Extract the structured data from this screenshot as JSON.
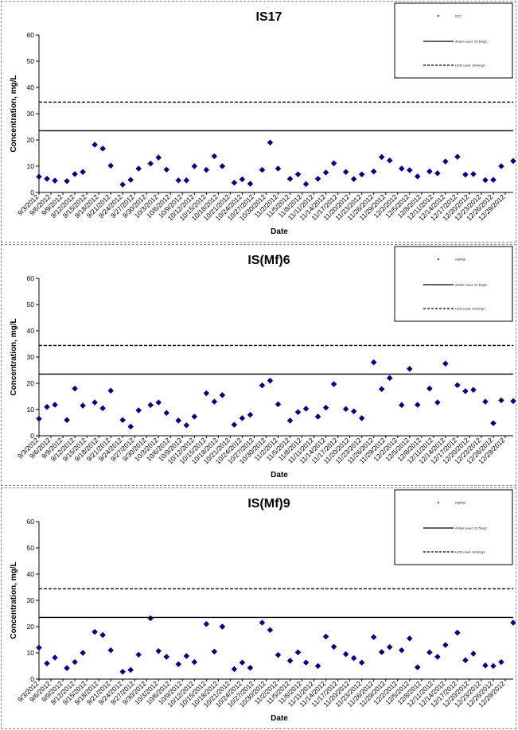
{
  "chart_data": [
    {
      "type": "scatter",
      "title": "IS17",
      "xlabel": "Date",
      "ylabel": "Concentration, mg/L",
      "ylim": [
        0,
        60
      ],
      "yticks": [
        0,
        10,
        20,
        30,
        40,
        50,
        60
      ],
      "grid": false,
      "legend_position": "top-right",
      "x_tick_labels": [
        "9/3/2012",
        "9/6/2012",
        "9/9/2012",
        "9/12/2012",
        "9/15/2012",
        "9/18/2012",
        "9/21/2012",
        "9/24/2012",
        "9/27/2012",
        "9/30/2012",
        "10/3/2012",
        "10/6/2012",
        "10/9/2012",
        "10/12/2012",
        "10/15/2012",
        "10/18/2012",
        "10/21/2012",
        "10/24/2012",
        "10/27/2012",
        "10/30/2012",
        "11/2/2012",
        "11/5/2012",
        "11/8/2012",
        "11/11/2012",
        "11/14/2012",
        "11/17/2012",
        "11/20/2012",
        "11/23/2012",
        "11/26/2012",
        "11/29/2012",
        "12/2/2012",
        "12/5/2012",
        "12/8/2012",
        "12/11/2012",
        "12/14/2012",
        "12/17/2012",
        "12/20/2012",
        "12/23/2012",
        "12/26/2012",
        "12/29/2012"
      ],
      "x_range": [
        "9/3/2012",
        "12/31/2012"
      ],
      "series": [
        {
          "name": "IS17",
          "marker": "diamond",
          "color": "#00007f",
          "points": [
            [
              "9/3/2012",
              6.0
            ],
            [
              "9/5/2012",
              5.2
            ],
            [
              "9/7/2012",
              4.5
            ],
            [
              "9/10/2012",
              4.3
            ],
            [
              "9/12/2012",
              7.0
            ],
            [
              "9/14/2012",
              7.8
            ],
            [
              "9/17/2012",
              18.2
            ],
            [
              "9/19/2012",
              16.7
            ],
            [
              "9/21/2012",
              10.2
            ],
            [
              "9/24/2012",
              3.0
            ],
            [
              "9/26/2012",
              4.8
            ],
            [
              "9/28/2012",
              9.1
            ],
            [
              "10/1/2012",
              11.0
            ],
            [
              "10/3/2012",
              13.3
            ],
            [
              "10/5/2012",
              8.7
            ],
            [
              "10/8/2012",
              4.6
            ],
            [
              "10/10/2012",
              4.6
            ],
            [
              "10/12/2012",
              10.0
            ],
            [
              "10/15/2012",
              8.6
            ],
            [
              "10/17/2012",
              13.8
            ],
            [
              "10/19/2012",
              10.0
            ],
            [
              "10/22/2012",
              3.7
            ],
            [
              "10/24/2012",
              5.0
            ],
            [
              "10/26/2012",
              3.3
            ],
            [
              "10/29/2012",
              8.6
            ],
            [
              "10/31/2012",
              19.0
            ],
            [
              "11/2/2012",
              9.1
            ],
            [
              "11/5/2012",
              5.2
            ],
            [
              "11/7/2012",
              6.9
            ],
            [
              "11/9/2012",
              3.2
            ],
            [
              "11/12/2012",
              5.2
            ],
            [
              "11/14/2012",
              7.6
            ],
            [
              "11/16/2012",
              11.1
            ],
            [
              "11/19/2012",
              7.8
            ],
            [
              "11/21/2012",
              5.1
            ],
            [
              "11/23/2012",
              6.9
            ],
            [
              "11/26/2012",
              8.0
            ],
            [
              "11/28/2012",
              13.5
            ],
            [
              "11/30/2012",
              12.2
            ],
            [
              "12/3/2012",
              9.1
            ],
            [
              "12/5/2012",
              8.5
            ],
            [
              "12/7/2012",
              6.1
            ],
            [
              "12/10/2012",
              8.0
            ],
            [
              "12/12/2012",
              7.3
            ],
            [
              "12/14/2012",
              11.8
            ],
            [
              "12/17/2012",
              13.6
            ],
            [
              "12/19/2012",
              6.8
            ],
            [
              "12/21/2012",
              7.0
            ],
            [
              "12/24/2012",
              4.7
            ],
            [
              "12/26/2012",
              4.8
            ],
            [
              "12/28/2012",
              10.0
            ],
            [
              "12/31/2012",
              12.0
            ]
          ]
        },
        {
          "name": "Action Level: 23.5mg/L",
          "type": "hline",
          "y": 23.5,
          "style": "solid"
        },
        {
          "name": "Limit Level: 34.4mg/L",
          "type": "hline",
          "y": 34.4,
          "style": "dashed"
        }
      ]
    },
    {
      "type": "scatter",
      "title": "IS(Mf)6",
      "xlabel": "Date",
      "ylabel": "Concentration, mg/L",
      "ylim": [
        0,
        60
      ],
      "yticks": [
        0,
        10,
        20,
        30,
        40,
        50,
        60
      ],
      "grid": false,
      "legend_position": "top-right",
      "x_tick_labels": [
        "9/3/2012",
        "9/6/2012",
        "9/9/2012",
        "9/12/2012",
        "9/15/2012",
        "9/18/2012",
        "9/21/2012",
        "9/24/2012",
        "9/27/2012",
        "9/30/2012",
        "10/3/2012",
        "10/6/2012",
        "10/9/2012",
        "10/12/2012",
        "10/15/2012",
        "10/18/2012",
        "10/21/2012",
        "10/24/2012",
        "10/27/2012",
        "10/30/2012",
        "11/2/2012",
        "11/5/2012",
        "11/8/2012",
        "11/11/2012",
        "11/14/2012",
        "11/17/2012",
        "11/20/2012",
        "11/23/2012",
        "11/26/2012",
        "11/29/2012",
        "12/2/2012",
        "12/5/2012",
        "12/8/2012",
        "12/11/2012",
        "12/14/2012",
        "12/17/2012",
        "12/20/2012",
        "12/23/2012",
        "12/26/2012",
        "12/29/2012"
      ],
      "x_range": [
        "9/3/2012",
        "12/31/2012"
      ],
      "series": [
        {
          "name": "IS(Mf)6",
          "marker": "diamond",
          "color": "#00007f",
          "points": [
            [
              "9/3/2012",
              6.5
            ],
            [
              "9/5/2012",
              11.0
            ],
            [
              "9/7/2012",
              11.8
            ],
            [
              "9/10/2012",
              6.0
            ],
            [
              "9/12/2012",
              18.0
            ],
            [
              "9/14/2012",
              11.5
            ],
            [
              "9/17/2012",
              12.7
            ],
            [
              "9/19/2012",
              10.5
            ],
            [
              "9/21/2012",
              17.2
            ],
            [
              "9/24/2012",
              6.0
            ],
            [
              "9/26/2012",
              3.5
            ],
            [
              "9/28/2012",
              9.7
            ],
            [
              "10/1/2012",
              11.7
            ],
            [
              "10/3/2012",
              12.7
            ],
            [
              "10/5/2012",
              8.7
            ],
            [
              "10/8/2012",
              5.8
            ],
            [
              "10/10/2012",
              4.0
            ],
            [
              "10/12/2012",
              7.3
            ],
            [
              "10/15/2012",
              16.2
            ],
            [
              "10/17/2012",
              13.0
            ],
            [
              "10/19/2012",
              15.5
            ],
            [
              "10/22/2012",
              4.2
            ],
            [
              "10/24/2012",
              6.7
            ],
            [
              "10/26/2012",
              8.0
            ],
            [
              "10/29/2012",
              19.2
            ],
            [
              "10/31/2012",
              21.0
            ],
            [
              "11/2/2012",
              12.0
            ],
            [
              "11/5/2012",
              5.8
            ],
            [
              "11/7/2012",
              9.0
            ],
            [
              "11/9/2012",
              10.3
            ],
            [
              "11/12/2012",
              7.3
            ],
            [
              "11/14/2012",
              10.7
            ],
            [
              "11/16/2012",
              19.7
            ],
            [
              "11/19/2012",
              10.2
            ],
            [
              "11/21/2012",
              9.3
            ],
            [
              "11/23/2012",
              6.7
            ],
            [
              "11/26/2012",
              28.0
            ],
            [
              "11/28/2012",
              17.8
            ],
            [
              "11/30/2012",
              22.0
            ],
            [
              "12/3/2012",
              11.7
            ],
            [
              "12/5/2012",
              25.5
            ],
            [
              "12/7/2012",
              11.8
            ],
            [
              "12/10/2012",
              18.0
            ],
            [
              "12/12/2012",
              12.7
            ],
            [
              "12/14/2012",
              27.5
            ],
            [
              "12/17/2012",
              19.3
            ],
            [
              "12/19/2012",
              17.0
            ],
            [
              "12/21/2012",
              17.5
            ],
            [
              "12/24/2012",
              13.0
            ],
            [
              "12/26/2012",
              4.8
            ],
            [
              "12/28/2012",
              13.5
            ],
            [
              "12/31/2012",
              13.2
            ]
          ]
        },
        {
          "name": "Action Level: 23.5mg/L",
          "type": "hline",
          "y": 23.5,
          "style": "solid"
        },
        {
          "name": "Limit Level: 34.4mg/L",
          "type": "hline",
          "y": 34.4,
          "style": "dashed"
        }
      ]
    },
    {
      "type": "scatter",
      "title": "IS(Mf)9",
      "xlabel": "Date",
      "ylabel": "Concentration, mg/L",
      "ylim": [
        0,
        60
      ],
      "yticks": [
        0,
        10,
        20,
        30,
        40,
        50,
        60
      ],
      "grid": false,
      "legend_position": "top-right",
      "x_tick_labels": [
        "9/3/2012",
        "9/6/2012",
        "9/9/2012",
        "9/12/2012",
        "9/15/2012",
        "9/18/2012",
        "9/21/2012",
        "9/24/2012",
        "9/27/2012",
        "9/30/2012",
        "10/3/2012",
        "10/6/2012",
        "10/9/2012",
        "10/12/2012",
        "10/15/2012",
        "10/18/2012",
        "10/21/2012",
        "10/24/2012",
        "10/27/2012",
        "10/30/2012",
        "11/2/2012",
        "11/5/2012",
        "11/8/2012",
        "11/11/2012",
        "11/14/2012",
        "11/17/2012",
        "11/20/2012",
        "11/23/2012",
        "11/26/2012",
        "11/29/2012",
        "12/2/2012",
        "12/5/2012",
        "12/8/2012",
        "12/11/2012",
        "12/14/2012",
        "12/17/2012",
        "12/20/2012",
        "12/23/2012",
        "12/26/2012",
        "12/29/2012"
      ],
      "x_range": [
        "9/3/2012",
        "12/31/2012"
      ],
      "series": [
        {
          "name": "IS(Mf)9",
          "marker": "diamond",
          "color": "#00007f",
          "points": [
            [
              "9/3/2012",
              12.0
            ],
            [
              "9/5/2012",
              6.0
            ],
            [
              "9/7/2012",
              8.2
            ],
            [
              "9/10/2012",
              4.2
            ],
            [
              "9/12/2012",
              6.5
            ],
            [
              "9/14/2012",
              10.0
            ],
            [
              "9/17/2012",
              18.0
            ],
            [
              "9/19/2012",
              16.8
            ],
            [
              "9/21/2012",
              11.0
            ],
            [
              "9/24/2012",
              2.8
            ],
            [
              "9/26/2012",
              3.5
            ],
            [
              "9/28/2012",
              9.3
            ],
            [
              "10/1/2012",
              23.2
            ],
            [
              "10/3/2012",
              10.7
            ],
            [
              "10/5/2012",
              8.5
            ],
            [
              "10/8/2012",
              5.7
            ],
            [
              "10/10/2012",
              8.8
            ],
            [
              "10/12/2012",
              6.5
            ],
            [
              "10/15/2012",
              21.0
            ],
            [
              "10/17/2012",
              10.5
            ],
            [
              "10/19/2012",
              20.0
            ],
            [
              "10/22/2012",
              3.8
            ],
            [
              "10/24/2012",
              6.3
            ],
            [
              "10/26/2012",
              4.3
            ],
            [
              "10/29/2012",
              21.5
            ],
            [
              "10/31/2012",
              18.7
            ],
            [
              "11/2/2012",
              9.2
            ],
            [
              "11/5/2012",
              7.0
            ],
            [
              "11/7/2012",
              10.2
            ],
            [
              "11/9/2012",
              6.3
            ],
            [
              "11/12/2012",
              5.0
            ],
            [
              "11/14/2012",
              16.2
            ],
            [
              "11/16/2012",
              12.3
            ],
            [
              "11/19/2012",
              9.5
            ],
            [
              "11/21/2012",
              8.0
            ],
            [
              "11/23/2012",
              6.3
            ],
            [
              "11/26/2012",
              16.0
            ],
            [
              "11/28/2012",
              10.3
            ],
            [
              "11/30/2012",
              12.2
            ],
            [
              "12/3/2012",
              11.0
            ],
            [
              "12/5/2012",
              15.5
            ],
            [
              "12/7/2012",
              4.5
            ],
            [
              "12/10/2012",
              10.2
            ],
            [
              "12/12/2012",
              8.5
            ],
            [
              "12/14/2012",
              13.0
            ],
            [
              "12/17/2012",
              17.7
            ],
            [
              "12/19/2012",
              7.2
            ],
            [
              "12/21/2012",
              9.7
            ],
            [
              "12/24/2012",
              5.2
            ],
            [
              "12/26/2012",
              5.0
            ],
            [
              "12/28/2012",
              6.5
            ],
            [
              "12/31/2012",
              21.5
            ]
          ]
        },
        {
          "name": "Action Level: 23.5mg/L",
          "type": "hline",
          "y": 23.5,
          "style": "solid"
        },
        {
          "name": "Limit Level: 34.4mg/L",
          "type": "hline",
          "y": 34.4,
          "style": "dashed"
        }
      ]
    }
  ]
}
